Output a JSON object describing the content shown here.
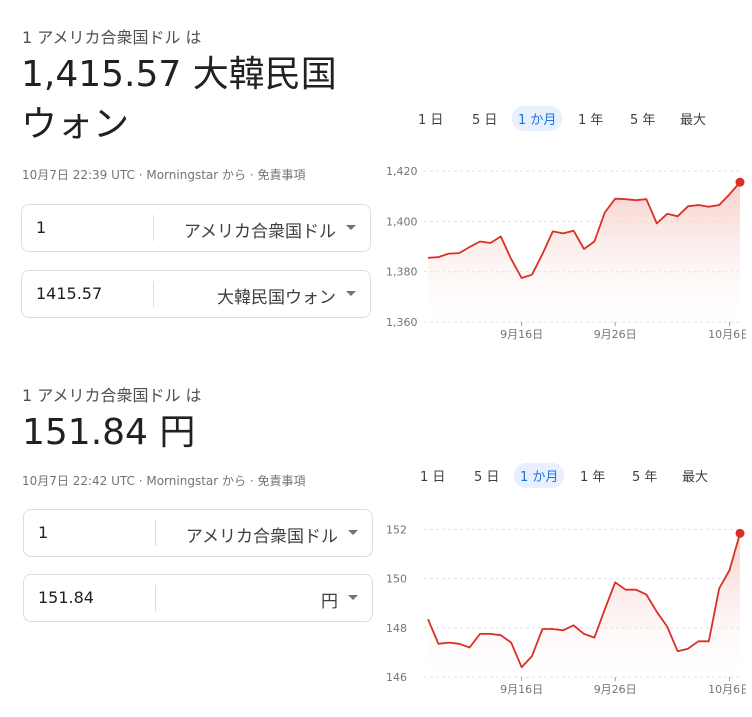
{
  "blocks": [
    {
      "subtitle": "1 アメリカ合衆国ドル は",
      "result_line1": "1,415.57 大韓民国",
      "result_line2": "ウォン",
      "meta_time": "10月7日 22:39 UTC · ",
      "meta_source": "Morningstar から",
      "meta_sep": " · ",
      "meta_disclaimer": "免責事項",
      "from_value": "1",
      "from_unit": "アメリカ合衆国ドル",
      "to_value": "1415.57",
      "to_unit": "大韓民国ウォン"
    },
    {
      "subtitle": "1 アメリカ合衆国ドル は",
      "result_line1": "151.84 円",
      "result_line2": "",
      "meta_time": "10月7日 22:42 UTC · ",
      "meta_source": "Morningstar から",
      "meta_sep": " · ",
      "meta_disclaimer": "免責事項",
      "from_value": "1",
      "from_unit": "アメリカ合衆国ドル",
      "to_value": "151.84",
      "to_unit": "円"
    }
  ],
  "tabs": [
    "1 日",
    "5 日",
    "1 か月",
    "1 年",
    "5 年",
    "最大"
  ],
  "active_tab": 2,
  "colors": {
    "line": "#d93025",
    "fill_top": "#f6c9c4",
    "grid": "#e0e0e0"
  },
  "chart_data": [
    {
      "type": "area",
      "title": "",
      "xlabel": "",
      "ylabel": "",
      "x_ticks": [
        "9月16日",
        "9月26日",
        "10月6日"
      ],
      "y_ticks": [
        1360,
        1380,
        1400,
        1420
      ],
      "ylim": [
        1360,
        1422
      ],
      "series": [
        {
          "values": [
            1385.5,
            1385.8,
            1387.2,
            1387.4,
            1389.8,
            1392.0,
            1391.4,
            1394.0,
            1385.0,
            1377.5,
            1378.8,
            1387.0,
            1396.0,
            1395.2,
            1396.3,
            1389.0,
            1392.0,
            1403.5,
            1409.0,
            1408.8,
            1408.4,
            1408.8,
            1399.2,
            1403.0,
            1402.0,
            1406.0,
            1406.5,
            1405.8,
            1406.5,
            1410.8,
            1415.57
          ]
        }
      ]
    },
    {
      "type": "area",
      "title": "",
      "xlabel": "",
      "ylabel": "",
      "x_ticks": [
        "9月16日",
        "9月26日",
        "10月6日"
      ],
      "y_ticks": [
        146,
        148,
        150,
        152
      ],
      "ylim": [
        146,
        152.3
      ],
      "series": [
        {
          "values": [
            148.35,
            147.35,
            147.4,
            147.35,
            147.2,
            147.75,
            147.75,
            147.7,
            147.4,
            146.4,
            146.85,
            147.95,
            147.95,
            147.9,
            148.1,
            147.75,
            147.6,
            148.75,
            149.85,
            149.55,
            149.55,
            149.35,
            148.65,
            148.05,
            147.05,
            147.15,
            147.45,
            147.45,
            149.6,
            150.35,
            151.84
          ]
        }
      ]
    }
  ]
}
